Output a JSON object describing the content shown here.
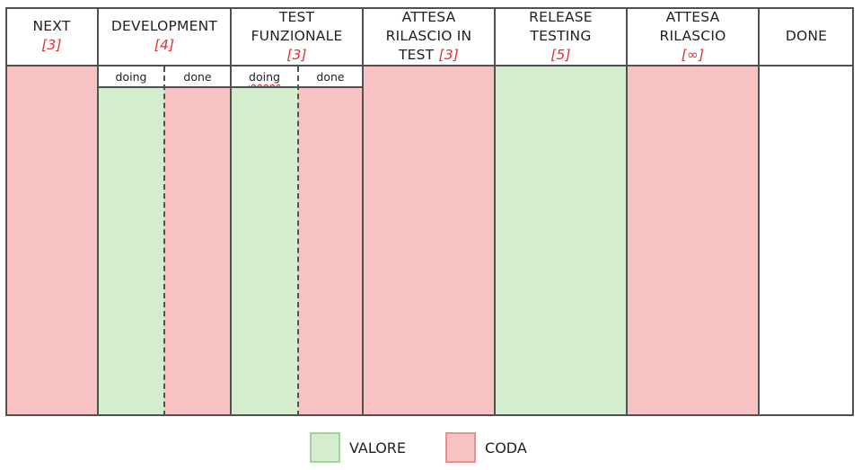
{
  "colors": {
    "queue": "#f9c2c2",
    "value": "#d4edcf",
    "border": "#505050",
    "limit": "#e53030"
  },
  "columns": [
    {
      "title_lines": [
        "NEXT"
      ],
      "limit": "[3]"
    },
    {
      "title_lines": [
        "DEVELOPMENT"
      ],
      "limit": "[4]",
      "sub": [
        "doing",
        "done"
      ]
    },
    {
      "title_lines": [
        "TEST",
        "FUNZIONALE"
      ],
      "limit": "[3]",
      "sub": [
        "doing",
        "done"
      ]
    },
    {
      "title_lines": [
        "ATTESA",
        "RILASCIO IN",
        "TEST"
      ],
      "limit": "[3]"
    },
    {
      "title_lines": [
        "RELEASE",
        "TESTING"
      ],
      "limit": "[5]"
    },
    {
      "title_lines": [
        "ATTESA",
        "RILASCIO"
      ],
      "limit": "[∞]"
    },
    {
      "title_lines": [
        "DONE"
      ]
    }
  ],
  "legend": [
    {
      "label": "VALORE",
      "color": "#d4edcf",
      "border": "#9fd495"
    },
    {
      "label": "CODA",
      "color": "#f9c2c2",
      "border": "#ee8d8d"
    }
  ]
}
